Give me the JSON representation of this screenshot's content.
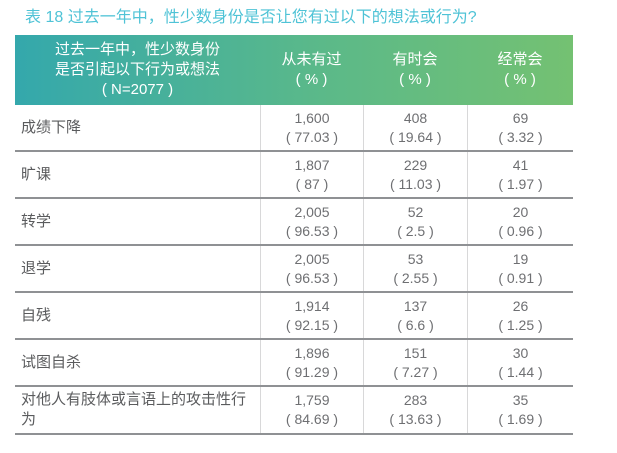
{
  "title": "表 18 过去一年中，性少数身份是否让您有过以下的想法或行为?",
  "table": {
    "question": {
      "line1": "过去一年中，性少数身份",
      "line2": "是否引起以下行为或想法",
      "line3": "( N=2077 )"
    },
    "columns": [
      {
        "label": "从未有过",
        "unit": "( % )"
      },
      {
        "label": "有时会",
        "unit": "( % )"
      },
      {
        "label": "经常会",
        "unit": "( % )"
      }
    ],
    "rows": [
      {
        "label": "成绩下降",
        "cells": [
          {
            "n": "1,600",
            "p": "( 77.03 )"
          },
          {
            "n": "408",
            "p": "( 19.64 )"
          },
          {
            "n": "69",
            "p": "( 3.32 )"
          }
        ]
      },
      {
        "label": "旷课",
        "cells": [
          {
            "n": "1,807",
            "p": "( 87 )"
          },
          {
            "n": "229",
            "p": "( 11.03 )"
          },
          {
            "n": "41",
            "p": "( 1.97 )"
          }
        ]
      },
      {
        "label": "转学",
        "cells": [
          {
            "n": "2,005",
            "p": "( 96.53 )"
          },
          {
            "n": "52",
            "p": "( 2.5 )"
          },
          {
            "n": "20",
            "p": "( 0.96 )"
          }
        ]
      },
      {
        "label": "退学",
        "cells": [
          {
            "n": "2,005",
            "p": "( 96.53 )"
          },
          {
            "n": "53",
            "p": "( 2.55 )"
          },
          {
            "n": "19",
            "p": "( 0.91 )"
          }
        ]
      },
      {
        "label": "自残",
        "cells": [
          {
            "n": "1,914",
            "p": "( 92.15 )"
          },
          {
            "n": "137",
            "p": "( 6.6 )"
          },
          {
            "n": "26",
            "p": "( 1.25 )"
          }
        ]
      },
      {
        "label": "试图自杀",
        "cells": [
          {
            "n": "1,896",
            "p": "( 91.29 )"
          },
          {
            "n": "151",
            "p": "( 7.27 )"
          },
          {
            "n": "30",
            "p": "( 1.44 )"
          }
        ]
      },
      {
        "label": "对他人有肢体或言语上的攻击性行为",
        "cells": [
          {
            "n": "1,759",
            "p": "( 84.69 )"
          },
          {
            "n": "283",
            "p": "( 13.63 )"
          },
          {
            "n": "35",
            "p": "( 1.69 )"
          }
        ]
      }
    ]
  },
  "colors": {
    "title_color": "#4fc3d6",
    "header_gradient_start": "#34a8ac",
    "header_gradient_mid": "#5bb989",
    "header_gradient_end": "#74c172",
    "header_text": "#ffffff",
    "row_label": "#5a5b5d",
    "cell_text": "#6e6f72",
    "row_border": "#8f9194",
    "column_divider": "#d8d8d9"
  }
}
